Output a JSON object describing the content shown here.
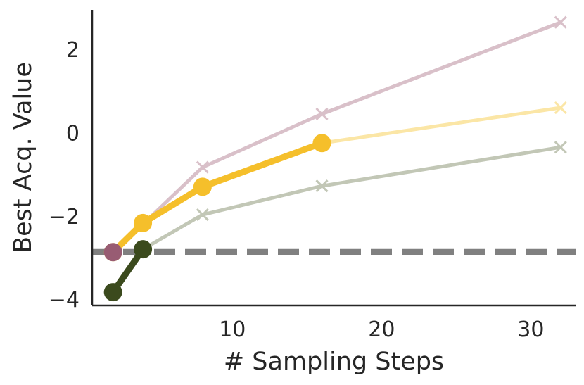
{
  "chart_data": {
    "type": "line",
    "xlabel": "# Sampling Steps",
    "ylabel": "Best Acq. Value",
    "xlim": [
      0.6,
      33
    ],
    "ylim": [
      -4.15,
      2.95
    ],
    "x_ticks": [
      10,
      20,
      30
    ],
    "x_tick_labels": [
      "10",
      "20",
      "30"
    ],
    "y_ticks": [
      2,
      0,
      -2,
      -4
    ],
    "y_tick_labels": [
      "2",
      "0",
      "−2",
      "−4"
    ],
    "grid": false,
    "legend": null,
    "reference_line": {
      "y": -2.87,
      "style": "dashed",
      "color": "#808080"
    },
    "series": [
      {
        "color": "#d9c0c9",
        "marker": "x",
        "x": [
          2,
          4,
          8,
          16,
          32
        ],
        "y": [
          -2.87,
          -2.2,
          -0.83,
          0.45,
          2.65
        ]
      },
      {
        "color": "#fbe6a6",
        "marker": "x",
        "x": [
          2,
          4,
          8,
          16,
          32
        ],
        "y": [
          -2.87,
          -2.17,
          -1.3,
          -0.25,
          0.6
        ]
      },
      {
        "color": "#c2c7b6",
        "marker": "x",
        "x": [
          2,
          4,
          8,
          16,
          32
        ],
        "y": [
          -3.83,
          -2.8,
          -1.97,
          -1.28,
          -0.35
        ]
      },
      {
        "color": "#f5bf2b",
        "marker": "o",
        "x": [
          2,
          4,
          8,
          16
        ],
        "y": [
          -2.87,
          -2.17,
          -1.3,
          -0.25
        ]
      },
      {
        "color": "#3b4a1d",
        "marker": "o",
        "x": [
          2,
          4
        ],
        "y": [
          -3.83,
          -2.8
        ]
      },
      {
        "color": "#985c73",
        "marker": "o",
        "x": [
          2
        ],
        "y": [
          -2.87
        ]
      }
    ]
  }
}
